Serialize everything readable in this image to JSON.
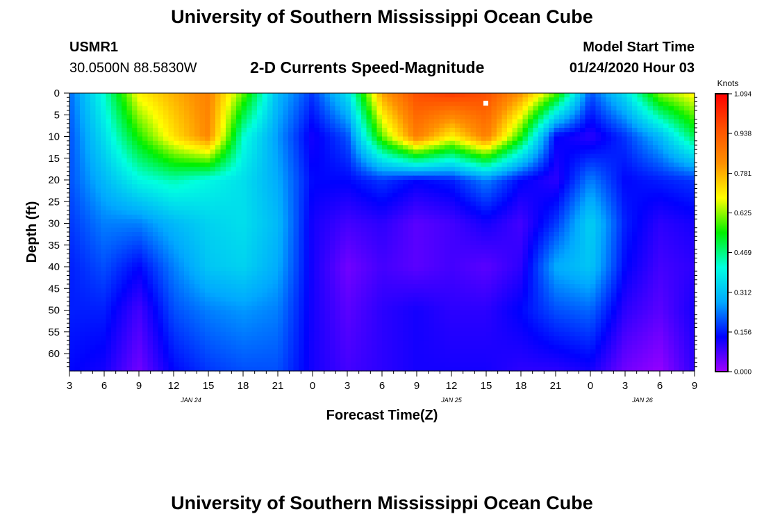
{
  "page": {
    "title": "University of Southern Mississippi Ocean Cube",
    "footer_title": "University of Southern Mississippi Ocean Cube"
  },
  "header": {
    "station_id": "USMR1",
    "coordinates": "30.0500N 88.5830W",
    "model_start_label": "Model Start Time",
    "model_start_value": "01/24/2020 Hour 03"
  },
  "chart_data": {
    "type": "heatmap",
    "title": "2-D Currents Speed-Magnitude",
    "xlabel": "Forecast Time(Z)",
    "ylabel": "Depth (ft)",
    "x_tick_labels": [
      "3",
      "6",
      "9",
      "12",
      "15",
      "18",
      "21",
      "0",
      "3",
      "6",
      "9",
      "12",
      "15",
      "18",
      "21",
      "0",
      "3",
      "6",
      "9"
    ],
    "x_date_labels": [
      {
        "label": "JAN 24",
        "tick_index": 3.5
      },
      {
        "label": "JAN 25",
        "tick_index": 11
      },
      {
        "label": "JAN 26",
        "tick_index": 16.5
      }
    ],
    "y_ticks": [
      0,
      5,
      10,
      15,
      20,
      25,
      30,
      35,
      40,
      45,
      50,
      55,
      60
    ],
    "ylim": [
      0,
      64
    ],
    "y_inverted": true,
    "colorbar": {
      "unit_label": "Knots",
      "tick_labels": [
        "1.094",
        "0.938",
        "0.781",
        "0.625",
        "0.469",
        "0.312",
        "0.156",
        "0.000"
      ],
      "range": [
        0,
        1.094
      ],
      "colors": [
        "#a000ff",
        "#0000ff",
        "#00a8ff",
        "#00ffe0",
        "#00f000",
        "#ffff00",
        "#ff9000",
        "#ff5000",
        "#ff0000"
      ]
    },
    "speed_grid": {
      "depths_ft": [
        0,
        10,
        20,
        30,
        40,
        50,
        64
      ],
      "times_hours_from_start": [
        0,
        3,
        6,
        9,
        12,
        15,
        18,
        21,
        24,
        27,
        30,
        33,
        36,
        39,
        42,
        45,
        48,
        51,
        54
      ],
      "values_knots": [
        [
          0.22,
          0.42,
          0.7,
          0.78,
          0.85,
          0.6,
          0.3,
          0.18,
          0.36,
          0.8,
          0.96,
          1.0,
          0.96,
          0.82,
          0.6,
          0.2,
          0.36,
          0.62,
          0.7
        ],
        [
          0.2,
          0.36,
          0.56,
          0.72,
          0.84,
          0.42,
          0.26,
          0.12,
          0.2,
          0.6,
          0.86,
          0.7,
          0.86,
          0.56,
          0.14,
          0.1,
          0.18,
          0.3,
          0.5
        ],
        [
          0.2,
          0.3,
          0.4,
          0.44,
          0.4,
          0.36,
          0.28,
          0.14,
          0.14,
          0.18,
          0.14,
          0.16,
          0.24,
          0.14,
          0.1,
          0.24,
          0.14,
          0.16,
          0.18
        ],
        [
          0.18,
          0.24,
          0.24,
          0.3,
          0.34,
          0.36,
          0.3,
          0.12,
          0.08,
          0.1,
          0.06,
          0.08,
          0.12,
          0.08,
          0.18,
          0.34,
          0.16,
          0.1,
          0.12
        ],
        [
          0.16,
          0.2,
          0.14,
          0.24,
          0.32,
          0.34,
          0.28,
          0.12,
          0.04,
          0.08,
          0.06,
          0.08,
          0.06,
          0.1,
          0.28,
          0.32,
          0.14,
          0.08,
          0.1
        ],
        [
          0.16,
          0.16,
          0.08,
          0.2,
          0.24,
          0.26,
          0.24,
          0.12,
          0.06,
          0.1,
          0.12,
          0.1,
          0.1,
          0.14,
          0.2,
          0.22,
          0.1,
          0.06,
          0.12
        ],
        [
          0.14,
          0.12,
          0.04,
          0.14,
          0.18,
          0.2,
          0.2,
          0.12,
          0.08,
          0.1,
          0.12,
          0.12,
          0.12,
          0.1,
          0.1,
          0.12,
          0.04,
          0.01,
          0.1
        ]
      ]
    }
  }
}
